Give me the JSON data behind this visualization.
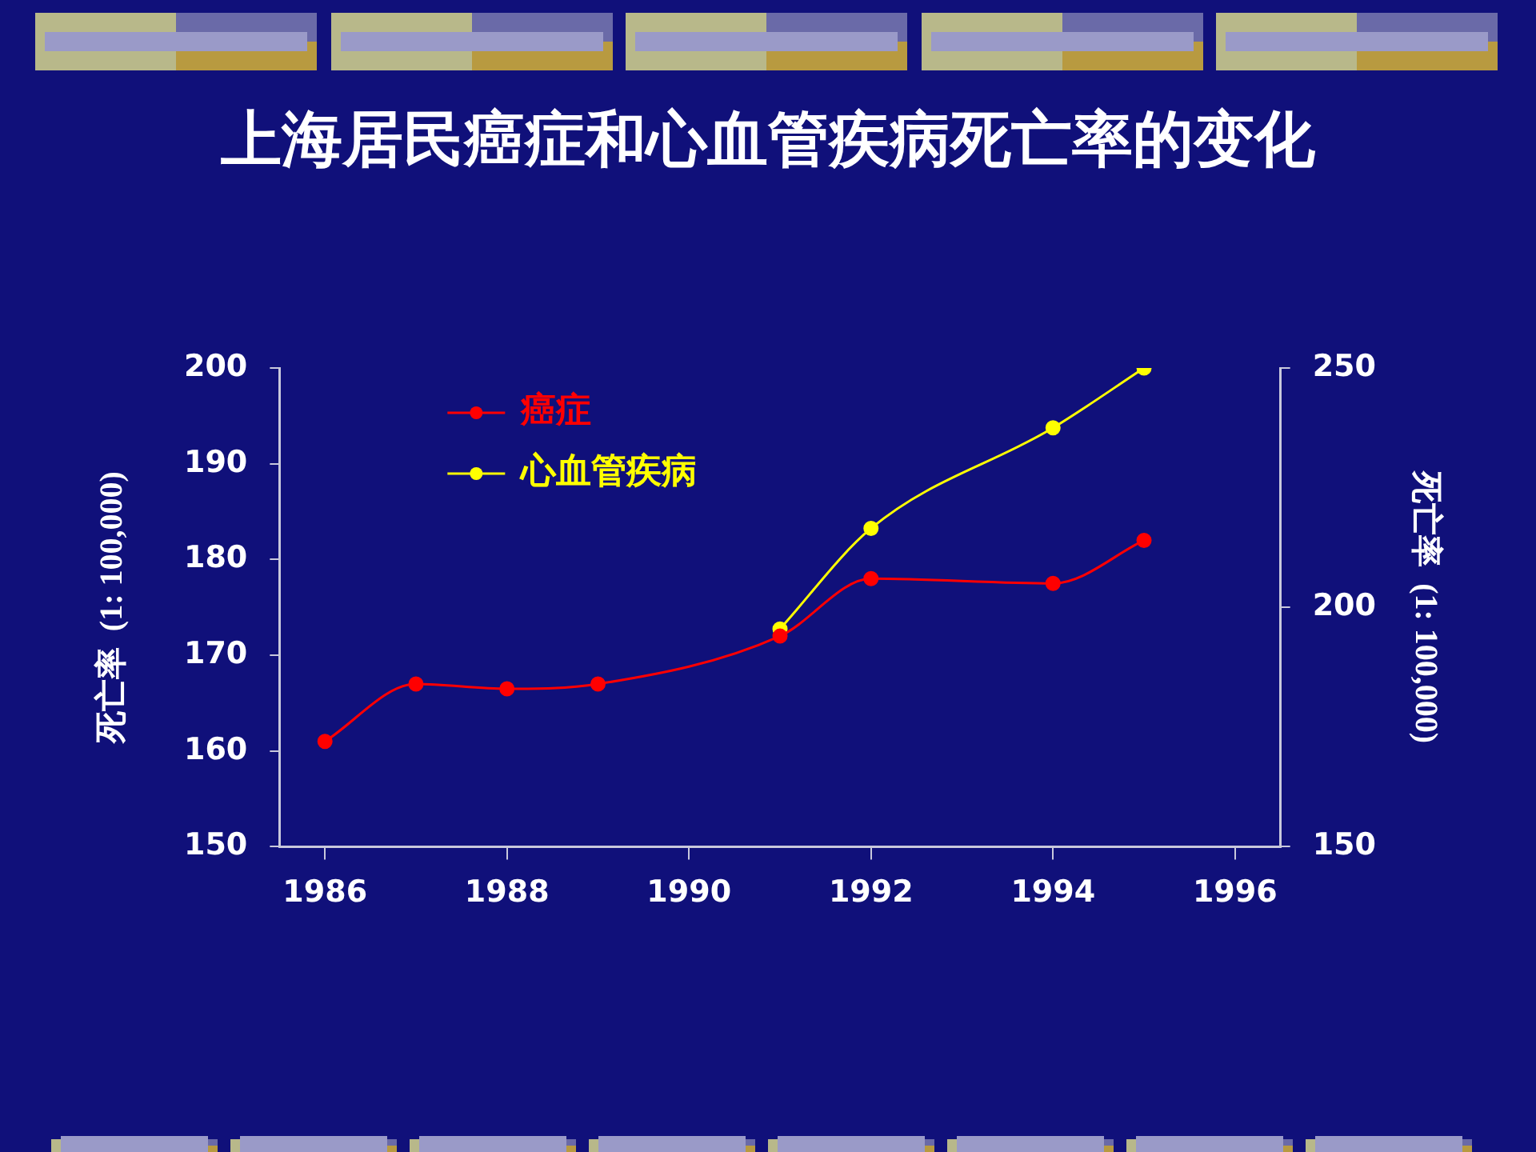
{
  "chart_data": {
    "type": "line",
    "title": "上海居民癌症和心血管疾病死亡率的变化",
    "ylabel": "死亡率  (1: 100,000)",
    "y2label": "死亡率  (1: 100,000)",
    "xlim": [
      1985.5,
      1996.5
    ],
    "xticks": [
      1986,
      1988,
      1990,
      1992,
      1994,
      1996
    ],
    "ylim": [
      150,
      200
    ],
    "yticks": [
      150,
      160,
      170,
      180,
      190,
      200
    ],
    "y2lim": [
      150,
      250
    ],
    "y2ticks": [
      150,
      200,
      250
    ],
    "legend": "top left",
    "grid": false,
    "marker": "circle",
    "series": [
      {
        "name": "癌症",
        "color": "#ff0000",
        "x": [
          1986,
          1987,
          1988,
          1989,
          1991,
          1992,
          1994,
          1995
        ],
        "values": [
          161,
          167,
          166.5,
          167,
          172,
          178,
          177.5,
          182
        ]
      },
      {
        "name": "心血管疾病",
        "color": "#ffff00",
        "axis": "y2",
        "x": [
          1991,
          1992,
          1994,
          1995
        ],
        "values": [
          195.5,
          216.5,
          237.5,
          250
        ]
      }
    ]
  }
}
